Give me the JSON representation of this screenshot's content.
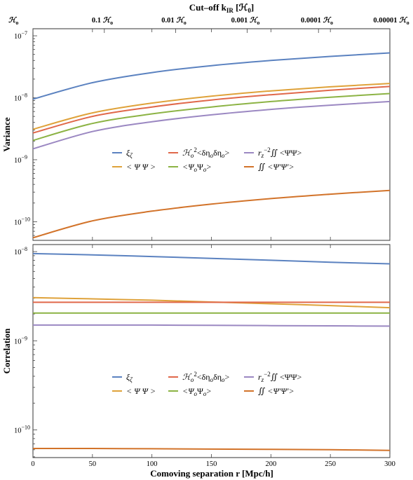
{
  "top_axis": {
    "title": "Cut–off k",
    "title_sub": "IR",
    "title_unit": " [ℋ",
    "title_unit_sub": "0",
    "title_close": "]",
    "ticks": [
      {
        "coef": "",
        "sym": "ℋ",
        "sub": "o"
      },
      {
        "coef": "0.1 ",
        "sym": "ℋ",
        "sub": "o"
      },
      {
        "coef": "0.01 ",
        "sym": "ℋ",
        "sub": "o"
      },
      {
        "coef": "0.001 ",
        "sym": "ℋ",
        "sub": "o"
      },
      {
        "coef": "0.0001 ",
        "sym": "ℋ",
        "sub": "o"
      },
      {
        "coef": "0.00001 ",
        "sym": "ℋ",
        "sub": "o"
      }
    ]
  },
  "chart_data": [
    {
      "type": "line",
      "ylabel": "Variance",
      "yscale": "log",
      "xlim": [
        0,
        300
      ],
      "ylim": [
        5e-11,
        1.3e-07
      ],
      "y_ticks": [
        {
          "base": "10",
          "exp": "−7",
          "value": 1e-07
        },
        {
          "base": "10",
          "exp": "−8",
          "value": 1e-08
        },
        {
          "base": "10",
          "exp": "−9",
          "value": 1e-09
        },
        {
          "base": "10",
          "exp": "−10",
          "value": 1e-10
        }
      ],
      "x": [
        0,
        50,
        100,
        150,
        200,
        250,
        300
      ],
      "series": [
        {
          "key": "xi",
          "color": "#5b82c0",
          "values": [
            9.5e-09,
            1.75e-08,
            2.55e-08,
            3.3e-08,
            4e-08,
            4.65e-08,
            5.3e-08
          ]
        },
        {
          "key": "psipsi",
          "color": "#dfa23a",
          "values": [
            3.1e-09,
            5.7e-09,
            8.2e-09,
            1.06e-08,
            1.29e-08,
            1.5e-08,
            1.7e-08
          ]
        },
        {
          "key": "eta",
          "color": "#e0684a",
          "values": [
            2.7e-09,
            5e-09,
            7.1e-09,
            9.2e-09,
            1.12e-08,
            1.32e-08,
            1.52e-08
          ]
        },
        {
          "key": "psio",
          "color": "#8cb344",
          "values": [
            2.05e-09,
            3.85e-09,
            5.5e-09,
            7.1e-09,
            8.7e-09,
            1.02e-08,
            1.17e-08
          ]
        },
        {
          "key": "rz",
          "color": "#9b88c2",
          "values": [
            1.5e-09,
            2.85e-09,
            4.1e-09,
            5.3e-09,
            6.5e-09,
            7.6e-09,
            8.7e-09
          ]
        },
        {
          "key": "int",
          "color": "#d2732a",
          "values": [
            5.5e-11,
            1.03e-10,
            1.48e-10,
            1.92e-10,
            2.36e-10,
            2.78e-10,
            3.2e-10
          ]
        }
      ]
    },
    {
      "type": "line",
      "ylabel": "Correlation",
      "xlabel": "Comoving separation r [Mpc/h]",
      "yscale": "log",
      "xlim": [
        0,
        300
      ],
      "ylim": [
        4.9e-11,
        1.2e-08
      ],
      "y_ticks": [
        {
          "base": "10",
          "exp": "−8",
          "value": 1e-08
        },
        {
          "base": "10",
          "exp": "−9",
          "value": 1e-09
        },
        {
          "base": "10",
          "exp": "−10",
          "value": 1e-10
        }
      ],
      "x_ticks": [
        "0",
        "50",
        "100",
        "150",
        "200",
        "250",
        "300"
      ],
      "x": [
        0,
        50,
        100,
        150,
        200,
        250,
        300
      ],
      "series": [
        {
          "key": "xi",
          "color": "#5b82c0",
          "values": [
            9.5e-09,
            9.2e-09,
            8.8e-09,
            8.4e-09,
            8e-09,
            7.6e-09,
            7.3e-09
          ]
        },
        {
          "key": "psipsi",
          "color": "#dfa23a",
          "values": [
            3.05e-09,
            2.95e-09,
            2.85e-09,
            2.72e-09,
            2.6e-09,
            2.48e-09,
            2.35e-09
          ]
        },
        {
          "key": "eta",
          "color": "#e0684a",
          "values": [
            2.7e-09,
            2.7e-09,
            2.7e-09,
            2.7e-09,
            2.7e-09,
            2.7e-09,
            2.7e-09
          ]
        },
        {
          "key": "psio",
          "color": "#8cb344",
          "values": [
            2.05e-09,
            2.05e-09,
            2.05e-09,
            2.05e-09,
            2.05e-09,
            2.05e-09,
            2.05e-09
          ]
        },
        {
          "key": "rz",
          "color": "#9b88c2",
          "values": [
            1.5e-09,
            1.5e-09,
            1.5e-09,
            1.49e-09,
            1.48e-09,
            1.47e-09,
            1.46e-09
          ]
        },
        {
          "key": "int",
          "color": "#d2732a",
          "values": [
            6.2e-11,
            6.2e-11,
            6.15e-11,
            6.1e-11,
            6.05e-11,
            6e-11,
            5.9e-11
          ]
        }
      ]
    }
  ],
  "legend_rows": [
    [
      {
        "key": "xi",
        "color": "#5b82c0",
        "label": "ξ",
        "sub": "ζ"
      },
      {
        "key": "eta",
        "color": "#e0684a",
        "label": "ℋ",
        "sub": "o",
        "sup": "2",
        "rest": "<δη",
        "sub2": "o",
        "rest2": "δη",
        "sub3": "o",
        "rest3": ">"
      },
      {
        "key": "rz",
        "color": "#9b88c2",
        "label": "r",
        "sub": "z",
        "sup": "−2",
        "rest": "∬ <ΨΨ>"
      }
    ],
    [
      {
        "key": "psipsi",
        "color": "#dfa23a",
        "label": "< Ψ Ψ >"
      },
      {
        "key": "psio",
        "color": "#8cb344",
        "label": "<Ψ",
        "sub": "o",
        "rest": "Ψ",
        "sub2": "o",
        "rest2": ">"
      },
      {
        "key": "int",
        "color": "#d2732a",
        "label": "∬ <Ψ′Ψ′>"
      }
    ]
  ]
}
